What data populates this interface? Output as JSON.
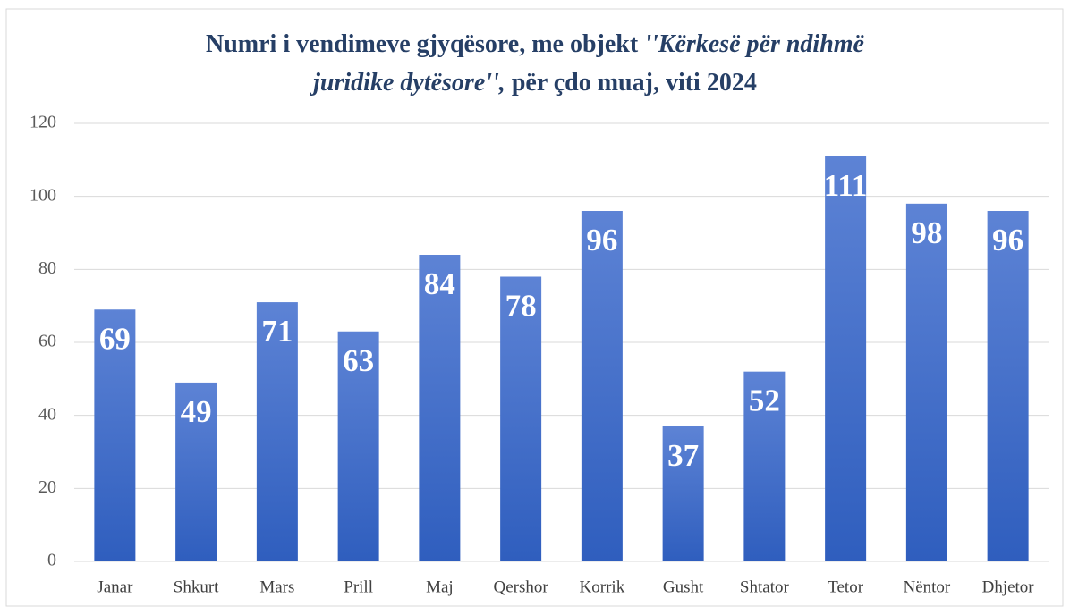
{
  "chart_data": {
    "type": "bar",
    "title": [
      [
        {
          "text": "Numri i vendimeve gjyqësore, me objekt ",
          "italic": false
        },
        {
          "text": "''Kërkesë për ndihmë",
          "italic": true
        }
      ],
      [
        {
          "text": "juridike dytësore'',",
          "italic": true
        },
        {
          "text": " për çdo muaj, viti 2024",
          "italic": false
        }
      ]
    ],
    "categories": [
      "Janar",
      "Shkurt",
      "Mars",
      "Prill",
      "Maj",
      "Qershor",
      "Korrik",
      "Gusht",
      "Shtator",
      "Tetor",
      "Nëntor",
      "Dhjetor"
    ],
    "values": [
      69,
      49,
      71,
      63,
      84,
      78,
      96,
      37,
      52,
      111,
      98,
      96
    ],
    "gradient": [
      "#5d83d5",
      "#2f5ebe"
    ],
    "ylim": [
      0,
      120
    ],
    "yticks": [
      0,
      20,
      40,
      60,
      80,
      100,
      120
    ],
    "grid": true
  }
}
